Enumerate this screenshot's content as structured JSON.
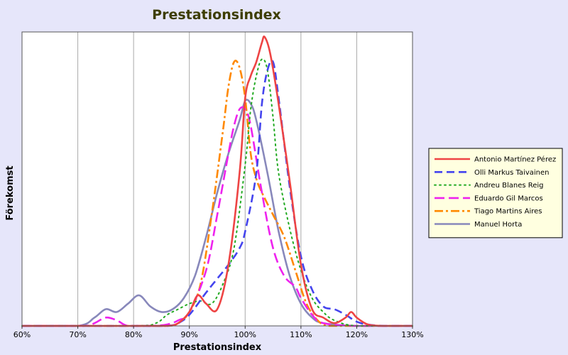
{
  "chart_data": {
    "type": "line",
    "title": "Prestationsindex",
    "xlabel": "Prestationsindex",
    "ylabel": "Förekomst",
    "xlim": [
      0.6,
      1.3
    ],
    "ylim": [
      0,
      1.0
    ],
    "xticks": [
      0.6,
      0.7,
      0.8,
      0.9,
      1.0,
      1.1,
      1.2,
      1.3
    ],
    "xtick_labels": [
      "60%",
      "70%",
      "80%",
      "90%",
      "100%",
      "110%",
      "120%",
      "130%"
    ],
    "grid": "vertical",
    "legend_position": "right",
    "background": "#e6e6fa",
    "plot_background": "#ffffff",
    "legend_background": "#ffffe0",
    "series": [
      {
        "name": "Antonio Martínez Pérez",
        "color": "#ee4444",
        "dash": "solid",
        "x": [
          0.6,
          0.7,
          0.8,
          0.86,
          0.88,
          0.9,
          0.915,
          0.93,
          0.95,
          0.97,
          0.99,
          1.0,
          1.01,
          1.02,
          1.03,
          1.035,
          1.045,
          1.06,
          1.08,
          1.1,
          1.12,
          1.14,
          1.16,
          1.18,
          1.19,
          1.2,
          1.22,
          1.25,
          1.3
        ],
        "y": [
          0,
          0,
          0,
          0,
          0.01,
          0.05,
          0.11,
          0.08,
          0.06,
          0.22,
          0.55,
          0.82,
          0.9,
          0.95,
          1.02,
          1.04,
          0.98,
          0.8,
          0.52,
          0.22,
          0.06,
          0.03,
          0.01,
          0.03,
          0.05,
          0.03,
          0.005,
          0,
          0
        ]
      },
      {
        "name": "Olli Markus Taivainen",
        "color": "#4444ee",
        "dash": "dash",
        "x": [
          0.6,
          0.8,
          0.86,
          0.88,
          0.9,
          0.93,
          0.95,
          0.97,
          0.99,
          1.0,
          1.02,
          1.03,
          1.04,
          1.05,
          1.06,
          1.08,
          1.1,
          1.12,
          1.14,
          1.16,
          1.18,
          1.2,
          1.22,
          1.25,
          1.3
        ],
        "y": [
          0,
          0,
          0,
          0.01,
          0.04,
          0.12,
          0.17,
          0.22,
          0.28,
          0.34,
          0.55,
          0.8,
          0.92,
          0.95,
          0.82,
          0.5,
          0.25,
          0.13,
          0.07,
          0.06,
          0.04,
          0.015,
          0.005,
          0,
          0
        ]
      },
      {
        "name": "Andreu Blanes Reig",
        "color": "#22aa22",
        "dash": "dot",
        "x": [
          0.6,
          0.8,
          0.84,
          0.86,
          0.88,
          0.9,
          0.92,
          0.94,
          0.96,
          0.98,
          1.0,
          1.01,
          1.02,
          1.03,
          1.04,
          1.05,
          1.06,
          1.08,
          1.1,
          1.12,
          1.14,
          1.16,
          1.2,
          1.3
        ],
        "y": [
          0,
          0,
          0.01,
          0.04,
          0.06,
          0.08,
          0.09,
          0.08,
          0.15,
          0.28,
          0.58,
          0.78,
          0.9,
          0.96,
          0.92,
          0.75,
          0.55,
          0.35,
          0.2,
          0.1,
          0.05,
          0.02,
          0,
          0
        ]
      },
      {
        "name": "Eduardo Gil Marcos",
        "color": "#ee22ee",
        "dash": "longdash",
        "x": [
          0.6,
          0.71,
          0.73,
          0.75,
          0.77,
          0.79,
          0.83,
          0.86,
          0.88,
          0.9,
          0.93,
          0.95,
          0.97,
          0.98,
          0.99,
          1.0,
          1.01,
          1.03,
          1.05,
          1.07,
          1.09,
          1.1,
          1.12,
          1.14,
          1.2,
          1.3
        ],
        "y": [
          0,
          0,
          0.01,
          0.03,
          0.02,
          0,
          0,
          0.005,
          0.02,
          0.05,
          0.2,
          0.4,
          0.62,
          0.72,
          0.78,
          0.78,
          0.72,
          0.48,
          0.28,
          0.18,
          0.14,
          0.1,
          0.04,
          0.01,
          0,
          0
        ]
      },
      {
        "name": "Tiago Martins Aires",
        "color": "#ff8800",
        "dash": "dashdot",
        "x": [
          0.6,
          0.8,
          0.86,
          0.88,
          0.9,
          0.92,
          0.94,
          0.96,
          0.97,
          0.98,
          0.99,
          1.0,
          1.01,
          1.02,
          1.03,
          1.05,
          1.07,
          1.09,
          1.11,
          1.13,
          1.15,
          1.2,
          1.3
        ],
        "y": [
          0,
          0,
          0,
          0.01,
          0.05,
          0.15,
          0.4,
          0.7,
          0.86,
          0.95,
          0.93,
          0.82,
          0.62,
          0.53,
          0.48,
          0.4,
          0.32,
          0.2,
          0.08,
          0.02,
          0,
          0,
          0
        ]
      },
      {
        "name": "Manuel Horta",
        "color": "#8888bb",
        "dash": "solid",
        "x": [
          0.6,
          0.7,
          0.73,
          0.75,
          0.77,
          0.79,
          0.81,
          0.83,
          0.85,
          0.87,
          0.89,
          0.91,
          0.93,
          0.95,
          0.97,
          0.99,
          1.0,
          1.01,
          1.02,
          1.04,
          1.06,
          1.08,
          1.1,
          1.12,
          1.14,
          1.2,
          1.3
        ],
        "y": [
          0,
          0,
          0.03,
          0.06,
          0.05,
          0.08,
          0.11,
          0.07,
          0.05,
          0.06,
          0.1,
          0.18,
          0.32,
          0.48,
          0.62,
          0.74,
          0.81,
          0.8,
          0.74,
          0.55,
          0.34,
          0.18,
          0.08,
          0.03,
          0.01,
          0,
          0
        ]
      }
    ]
  }
}
